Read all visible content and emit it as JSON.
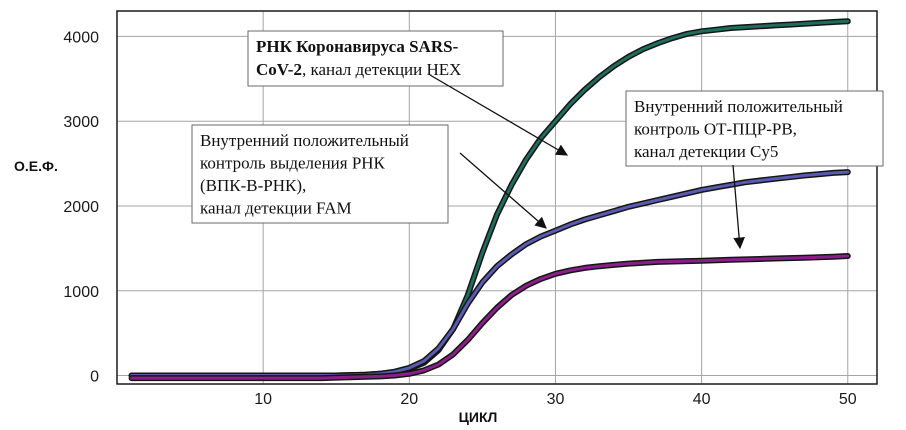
{
  "chart_data": {
    "type": "line",
    "xlabel": "ЦИКЛ",
    "ylabel": "О.Е.Ф.",
    "xlim": [
      0,
      52
    ],
    "ylim": [
      -100,
      4300
    ],
    "xticks": [
      0,
      10,
      20,
      30,
      40,
      50
    ],
    "yticks": [
      0,
      1000,
      2000,
      3000,
      4000
    ],
    "grid": true,
    "x": [
      1,
      2,
      3,
      4,
      5,
      6,
      7,
      8,
      9,
      10,
      11,
      12,
      13,
      14,
      15,
      16,
      17,
      18,
      19,
      20,
      21,
      22,
      23,
      24,
      25,
      26,
      27,
      28,
      29,
      30,
      31,
      32,
      33,
      34,
      35,
      36,
      37,
      38,
      39,
      40,
      41,
      42,
      43,
      44,
      45,
      46,
      47,
      48,
      49,
      50
    ],
    "series": [
      {
        "color": "#1f6b5c",
        "values": [
          0,
          0,
          0,
          0,
          0,
          0,
          0,
          0,
          0,
          0,
          0,
          0,
          0,
          0,
          0,
          5,
          10,
          20,
          40,
          80,
          150,
          300,
          550,
          950,
          1450,
          1900,
          2250,
          2550,
          2800,
          3000,
          3200,
          3370,
          3520,
          3650,
          3760,
          3850,
          3920,
          3980,
          4030,
          4060,
          4080,
          4100,
          4110,
          4120,
          4130,
          4140,
          4150,
          4160,
          4170,
          4180
        ]
      },
      {
        "color": "#5a5ab0",
        "values": [
          0,
          0,
          0,
          0,
          0,
          0,
          0,
          0,
          0,
          0,
          0,
          0,
          0,
          0,
          0,
          5,
          10,
          20,
          45,
          90,
          170,
          320,
          550,
          850,
          1100,
          1290,
          1430,
          1550,
          1640,
          1710,
          1780,
          1840,
          1890,
          1940,
          1990,
          2030,
          2070,
          2110,
          2150,
          2190,
          2220,
          2250,
          2280,
          2300,
          2320,
          2340,
          2360,
          2375,
          2390,
          2400
        ]
      },
      {
        "color": "#8a1f8a",
        "values": [
          -30,
          -30,
          -30,
          -30,
          -30,
          -30,
          -30,
          -30,
          -30,
          -30,
          -30,
          -30,
          -30,
          -30,
          -25,
          -20,
          -15,
          -10,
          0,
          20,
          60,
          130,
          250,
          420,
          620,
          800,
          950,
          1060,
          1140,
          1200,
          1240,
          1270,
          1290,
          1305,
          1320,
          1330,
          1340,
          1345,
          1350,
          1355,
          1360,
          1365,
          1370,
          1375,
          1380,
          1385,
          1390,
          1395,
          1400,
          1410
        ]
      }
    ],
    "annotations": [
      {
        "lines": [
          {
            "bold": "РНК Коронавируса SARS-",
            "normal": ""
          },
          {
            "bold": "CoV-2",
            "normal": ", канал детекции HEX"
          }
        ]
      },
      {
        "lines": [
          {
            "bold": "",
            "normal": "Внутренний положительный"
          },
          {
            "bold": "",
            "normal": "контроль выделения РНК"
          },
          {
            "bold": "",
            "normal": "(ВПК-В-РНК),"
          },
          {
            "bold": "",
            "normal": "канал детекции FAM"
          }
        ]
      },
      {
        "lines": [
          {
            "bold": "",
            "normal": "Внутренний положительный"
          },
          {
            "bold": "",
            "normal": "контроль ОТ-ПЦР-РВ,"
          },
          {
            "bold": "",
            "normal": "канал детекции Cy5"
          }
        ]
      }
    ]
  }
}
